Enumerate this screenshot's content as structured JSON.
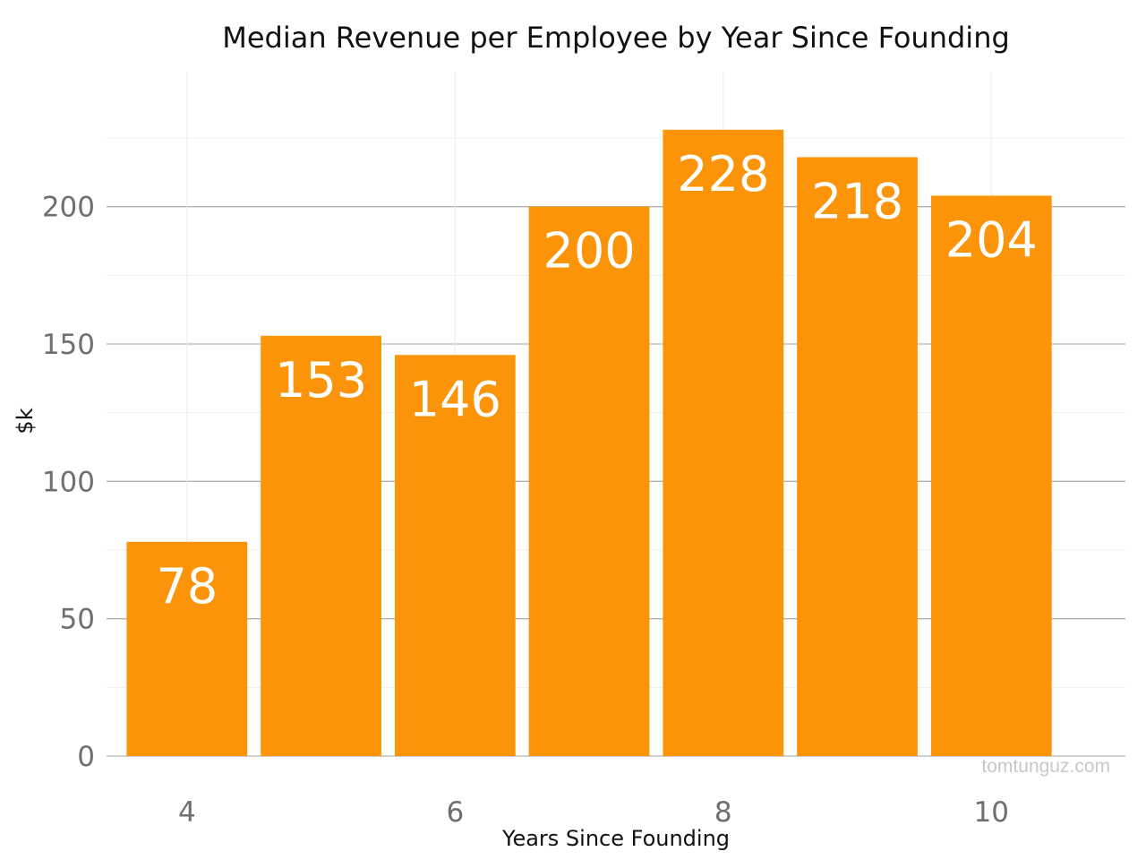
{
  "chart_data": {
    "type": "bar",
    "title": "Median Revenue per Employee by Year Since Founding",
    "xlabel": "Years Since Founding",
    "ylabel": "$k",
    "x": [
      4,
      5,
      6,
      7,
      8,
      9,
      10
    ],
    "values": [
      78,
      153,
      146,
      200,
      228,
      218,
      204
    ],
    "data_labels": [
      "78",
      "153",
      "146",
      "200",
      "228",
      "218",
      "204"
    ],
    "xlim": [
      3.4,
      11.0
    ],
    "ylim": [
      0,
      240
    ],
    "x_ticks": [
      4,
      6,
      8,
      10
    ],
    "x_tick_labels": [
      "4",
      "6",
      "8",
      "10"
    ],
    "y_ticks": [
      0,
      50,
      100,
      150,
      200
    ],
    "y_tick_labels": [
      "0",
      "50",
      "100",
      "150",
      "200"
    ],
    "grid": true,
    "legend": "none",
    "bar_color": "#fb9409",
    "watermark": "tomtunguz.com"
  }
}
